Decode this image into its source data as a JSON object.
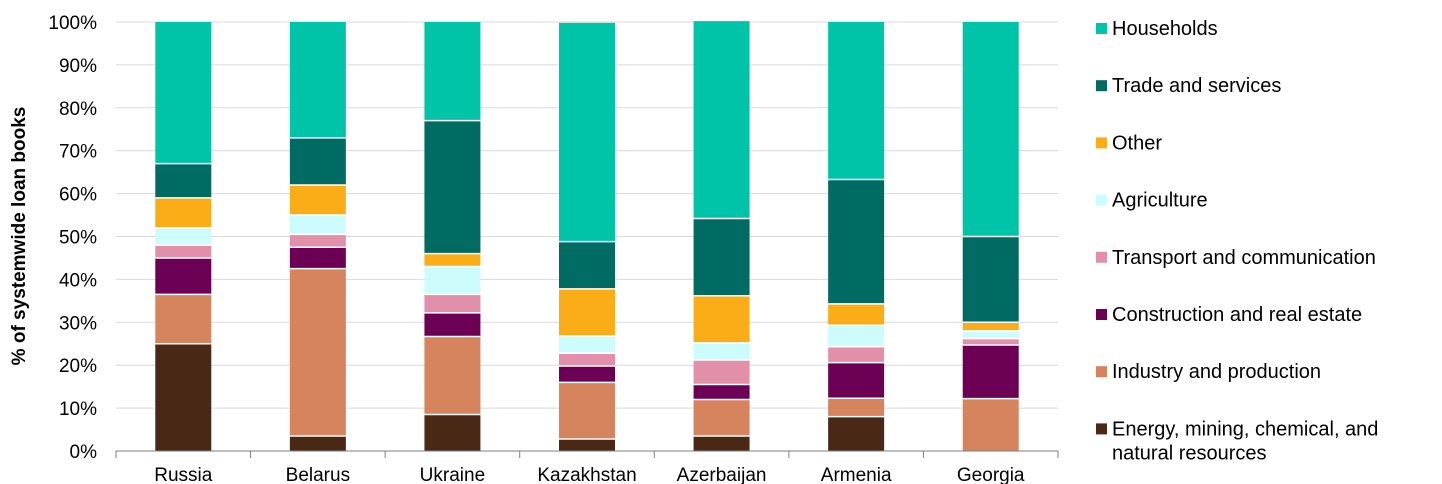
{
  "chart_data": {
    "type": "bar",
    "stacked": true,
    "percent_stacked": true,
    "ylabel": "% of systemwide loan books",
    "xlabel": "",
    "ylim": [
      0,
      100
    ],
    "yticks": [
      0,
      10,
      20,
      30,
      40,
      50,
      60,
      70,
      80,
      90,
      100
    ],
    "ytick_labels": [
      "0%",
      "10%",
      "20%",
      "30%",
      "40%",
      "50%",
      "60%",
      "70%",
      "80%",
      "90%",
      "100%"
    ],
    "grid": true,
    "legend_position": "right",
    "categories": [
      "Russia",
      "Belarus",
      "Ukraine",
      "Kazakhstan",
      "Azerbaijan",
      "Armenia",
      "Georgia"
    ],
    "series": [
      {
        "name": "Energy, mining, chemical, and natural resources",
        "legend_lines": [
          "Energy, mining, chemical, and",
          "natural resources"
        ],
        "color": "#4a2816",
        "values": [
          25,
          3.5,
          8.5,
          2.8,
          3.5,
          8,
          0
        ]
      },
      {
        "name": "Industry and production",
        "legend_lines": [
          "Industry and production"
        ],
        "color": "#d5845e",
        "values": [
          11.5,
          39,
          18.2,
          13.2,
          8.5,
          4.3,
          12.2
        ]
      },
      {
        "name": "Construction and real estate",
        "legend_lines": [
          "Construction and real estate"
        ],
        "color": "#6b0055",
        "values": [
          8.5,
          5,
          5.5,
          3.8,
          3.5,
          8.3,
          12.5
        ]
      },
      {
        "name": "Transport and communication",
        "legend_lines": [
          "Transport and communication"
        ],
        "color": "#e290aa",
        "values": [
          3,
          3,
          4.3,
          3,
          5.7,
          3.7,
          1.5
        ]
      },
      {
        "name": "Agriculture",
        "legend_lines": [
          "Agriculture"
        ],
        "color": "#ccfcfc",
        "values": [
          4,
          4.5,
          6.5,
          4,
          4,
          5,
          1.8
        ]
      },
      {
        "name": "Other",
        "legend_lines": [
          "Other"
        ],
        "color": "#fbad18",
        "values": [
          7,
          7,
          3,
          11,
          11,
          5,
          2
        ]
      },
      {
        "name": "Trade and services",
        "legend_lines": [
          "Trade and services"
        ],
        "color": "#006b62",
        "values": [
          8,
          11,
          31,
          11,
          18,
          29,
          20
        ]
      },
      {
        "name": "Households",
        "legend_lines": [
          "Households"
        ],
        "color": "#00c4a8",
        "values": [
          33,
          27,
          23,
          51,
          46,
          36.7,
          50
        ]
      }
    ]
  }
}
